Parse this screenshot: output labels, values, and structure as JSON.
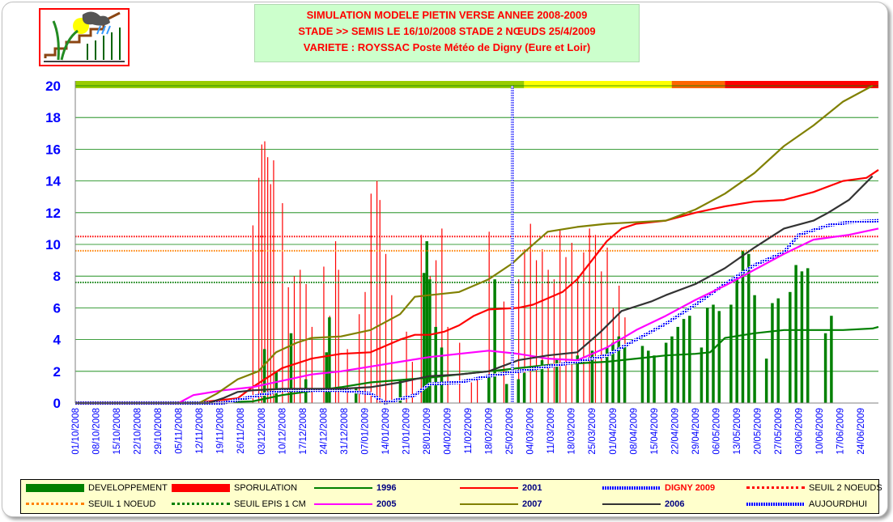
{
  "title": {
    "line1": "SIMULATION MODELE PIETIN VERSE ANNEE 2008-2009",
    "line2": "STADE  >> SEMIS LE  16/10/2008   STADE 2 NŒUDS 25/4/2009",
    "line3": "VARIETE : ROYSSAC  Poste Météo de Digny (Eure et Loir)"
  },
  "logo": {
    "icon": "farm-weather-logo-icon"
  },
  "colors": {
    "developpement": "#008000",
    "sporulation": "#ff0000",
    "s1996": "#008000",
    "s2001": "#ff0000",
    "digny2009": "#0000ff",
    "seuil2noeuds": "#ff0000",
    "seuil1noeud": "#ff8000",
    "seuilepis": "#008000",
    "s2005": "#ff00ff",
    "s2007": "#808000",
    "s2006": "#333333",
    "aujourdhui": "#0000ff"
  },
  "chart_data": {
    "type": "line",
    "ylim": [
      0,
      20
    ],
    "yticks": [
      0,
      2,
      4,
      6,
      8,
      10,
      12,
      14,
      16,
      18,
      20
    ],
    "x_labels": [
      "01/10/2008",
      "08/10/2008",
      "15/10/2008",
      "22/10/2008",
      "29/10/2008",
      "05/11/2008",
      "12/11/2008",
      "19/11/2008",
      "26/11/2008",
      "03/12/2008",
      "10/12/2008",
      "17/12/2008",
      "24/12/2008",
      "31/12/2008",
      "07/01/2009",
      "14/01/2009",
      "21/01/2009",
      "28/01/2009",
      "04/02/2009",
      "11/02/2009",
      "18/02/2009",
      "25/02/2009",
      "04/03/2009",
      "11/03/2009",
      "18/03/2009",
      "25/03/2009",
      "01/04/2009",
      "08/04/2009",
      "15/04/2009",
      "22/04/2009",
      "29/04/2009",
      "06/05/2009",
      "13/05/2009",
      "20/05/2009",
      "27/05/2009",
      "03/06/2009",
      "10/06/2009",
      "17/06/2009",
      "24/06/2009"
    ],
    "risk_bar": [
      {
        "from": 0,
        "to": 152,
        "color": "#99cc00"
      },
      {
        "from": 152,
        "to": 202,
        "color": "#ffff00"
      },
      {
        "from": 202,
        "to": 220,
        "color": "#ff6600"
      },
      {
        "from": 220,
        "to": 272,
        "color": "#ff0000"
      }
    ],
    "thresholds": [
      {
        "name": "SEUIL 2 NOEUDS",
        "value": 10.5
      },
      {
        "name": "SEUIL 1 NOEUD",
        "value": 9.6
      },
      {
        "name": "SEUIL EPIS 1 CM",
        "value": 7.6
      }
    ],
    "aujourdhui_day": 148,
    "series": [
      {
        "name": "1996",
        "key": "s1996",
        "points": [
          [
            0,
            0
          ],
          [
            40,
            0
          ],
          [
            60,
            0.1
          ],
          [
            70,
            0.5
          ],
          [
            90,
            1.0
          ],
          [
            100,
            1.3
          ],
          [
            120,
            1.6
          ],
          [
            130,
            1.8
          ],
          [
            140,
            2.0
          ],
          [
            150,
            2.2
          ],
          [
            160,
            2.4
          ],
          [
            170,
            2.5
          ],
          [
            180,
            2.6
          ],
          [
            190,
            2.8
          ],
          [
            200,
            3.0
          ],
          [
            210,
            3.1
          ],
          [
            215,
            3.2
          ],
          [
            220,
            4.1
          ],
          [
            230,
            4.4
          ],
          [
            240,
            4.6
          ],
          [
            250,
            4.6
          ],
          [
            260,
            4.6
          ],
          [
            270,
            4.7
          ],
          [
            272,
            4.8
          ]
        ]
      },
      {
        "name": "2001",
        "key": "s2001",
        "points": [
          [
            0,
            0
          ],
          [
            40,
            0
          ],
          [
            55,
            0.3
          ],
          [
            60,
            1.0
          ],
          [
            70,
            2.2
          ],
          [
            80,
            2.8
          ],
          [
            90,
            3.1
          ],
          [
            100,
            3.2
          ],
          [
            110,
            4.0
          ],
          [
            115,
            4.3
          ],
          [
            120,
            4.3
          ],
          [
            125,
            4.5
          ],
          [
            130,
            4.9
          ],
          [
            135,
            5.5
          ],
          [
            140,
            5.9
          ],
          [
            150,
            6.0
          ],
          [
            155,
            6.2
          ],
          [
            165,
            7.0
          ],
          [
            170,
            7.8
          ],
          [
            175,
            9.0
          ],
          [
            180,
            10.2
          ],
          [
            185,
            11.0
          ],
          [
            190,
            11.3
          ],
          [
            200,
            11.5
          ],
          [
            210,
            12.0
          ],
          [
            220,
            12.4
          ],
          [
            230,
            12.7
          ],
          [
            240,
            12.8
          ],
          [
            250,
            13.3
          ],
          [
            260,
            14.0
          ],
          [
            268,
            14.2
          ],
          [
            272,
            14.7
          ]
        ]
      },
      {
        "name": "DIGNY 2009",
        "key": "digny2009",
        "points": [
          [
            0,
            0
          ],
          [
            50,
            0
          ],
          [
            60,
            0.4
          ],
          [
            70,
            0.8
          ],
          [
            90,
            0.8
          ],
          [
            95,
            0.7
          ],
          [
            100,
            0.6
          ],
          [
            105,
            0
          ],
          [
            115,
            0.5
          ],
          [
            120,
            1.2
          ],
          [
            130,
            1.3
          ],
          [
            135,
            1.5
          ],
          [
            140,
            1.7
          ],
          [
            150,
            2.0
          ],
          [
            160,
            2.3
          ],
          [
            170,
            2.6
          ],
          [
            180,
            3.0
          ],
          [
            190,
            4.0
          ],
          [
            200,
            5.0
          ],
          [
            205,
            5.6
          ],
          [
            210,
            6.2
          ],
          [
            220,
            7.5
          ],
          [
            230,
            8.7
          ],
          [
            240,
            9.5
          ],
          [
            245,
            10.6
          ],
          [
            250,
            10.9
          ],
          [
            255,
            11.2
          ],
          [
            262,
            11.4
          ],
          [
            272,
            11.5
          ]
        ]
      },
      {
        "name": "2005",
        "key": "s2005",
        "points": [
          [
            0,
            0
          ],
          [
            35,
            0
          ],
          [
            40,
            0.5
          ],
          [
            50,
            0.8
          ],
          [
            60,
            1.0
          ],
          [
            70,
            1.4
          ],
          [
            80,
            1.8
          ],
          [
            90,
            2.0
          ],
          [
            100,
            2.3
          ],
          [
            110,
            2.6
          ],
          [
            120,
            2.9
          ],
          [
            130,
            3.1
          ],
          [
            140,
            3.3
          ],
          [
            150,
            3.1
          ],
          [
            160,
            2.8
          ],
          [
            170,
            2.7
          ],
          [
            180,
            3.5
          ],
          [
            190,
            4.6
          ],
          [
            200,
            5.5
          ],
          [
            210,
            6.5
          ],
          [
            220,
            7.4
          ],
          [
            230,
            8.4
          ],
          [
            240,
            9.4
          ],
          [
            250,
            10.3
          ],
          [
            262,
            10.6
          ],
          [
            272,
            11.0
          ]
        ]
      },
      {
        "name": "2007",
        "key": "s2007",
        "points": [
          [
            0,
            0
          ],
          [
            42,
            0
          ],
          [
            48,
            0.6
          ],
          [
            55,
            1.5
          ],
          [
            62,
            2.0
          ],
          [
            68,
            3.2
          ],
          [
            75,
            3.8
          ],
          [
            80,
            4.1
          ],
          [
            90,
            4.2
          ],
          [
            100,
            4.6
          ],
          [
            110,
            5.6
          ],
          [
            115,
            6.7
          ],
          [
            120,
            6.8
          ],
          [
            130,
            7.0
          ],
          [
            140,
            7.8
          ],
          [
            148,
            8.8
          ],
          [
            152,
            9.5
          ],
          [
            160,
            10.8
          ],
          [
            170,
            11.1
          ],
          [
            180,
            11.3
          ],
          [
            200,
            11.5
          ],
          [
            210,
            12.2
          ],
          [
            220,
            13.2
          ],
          [
            230,
            14.5
          ],
          [
            240,
            16.2
          ],
          [
            250,
            17.5
          ],
          [
            260,
            19.0
          ],
          [
            270,
            20
          ]
        ]
      },
      {
        "name": "2006",
        "key": "s2006",
        "points": [
          [
            0,
            0
          ],
          [
            45,
            0
          ],
          [
            50,
            0.3
          ],
          [
            55,
            0.7
          ],
          [
            60,
            0.8
          ],
          [
            70,
            0.9
          ],
          [
            90,
            0.9
          ],
          [
            100,
            1.0
          ],
          [
            110,
            1.3
          ],
          [
            120,
            1.7
          ],
          [
            130,
            1.8
          ],
          [
            140,
            2.0
          ],
          [
            150,
            2.7
          ],
          [
            160,
            3.0
          ],
          [
            170,
            3.2
          ],
          [
            178,
            4.5
          ],
          [
            185,
            5.8
          ],
          [
            195,
            6.4
          ],
          [
            200,
            6.8
          ],
          [
            210,
            7.5
          ],
          [
            220,
            8.5
          ],
          [
            230,
            9.8
          ],
          [
            240,
            11.0
          ],
          [
            250,
            11.5
          ],
          [
            255,
            12.0
          ],
          [
            262,
            12.8
          ],
          [
            270,
            14.3
          ]
        ]
      }
    ],
    "developpement_bars": [
      [
        64,
        3.4
      ],
      [
        68,
        2.0
      ],
      [
        73,
        4.4
      ],
      [
        78,
        1.5
      ],
      [
        85,
        3.2
      ],
      [
        86,
        5.4
      ],
      [
        95,
        1.0
      ],
      [
        110,
        1.5
      ],
      [
        118,
        8.2
      ],
      [
        119,
        10.2
      ],
      [
        120,
        7.8
      ],
      [
        122,
        4.8
      ],
      [
        124,
        3.5
      ],
      [
        140,
        1.8
      ],
      [
        142,
        7.8
      ],
      [
        146,
        1.2
      ],
      [
        150,
        1.5
      ],
      [
        152,
        1.9
      ],
      [
        158,
        2.7
      ],
      [
        163,
        2.8
      ],
      [
        170,
        3.0
      ],
      [
        175,
        3.3
      ],
      [
        180,
        3.5
      ],
      [
        182,
        3.8
      ],
      [
        184,
        4.2
      ],
      [
        186,
        3.6
      ],
      [
        192,
        3.6
      ],
      [
        194,
        3.3
      ],
      [
        196,
        3.0
      ],
      [
        200,
        3.8
      ],
      [
        202,
        4.2
      ],
      [
        204,
        4.8
      ],
      [
        206,
        5.3
      ],
      [
        208,
        5.5
      ],
      [
        212,
        3.5
      ],
      [
        214,
        6.0
      ],
      [
        216,
        6.2
      ],
      [
        218,
        5.8
      ],
      [
        222,
        6.2
      ],
      [
        224,
        8.0
      ],
      [
        226,
        9.6
      ],
      [
        228,
        9.4
      ],
      [
        230,
        6.8
      ],
      [
        234,
        2.8
      ],
      [
        236,
        6.3
      ],
      [
        238,
        6.6
      ],
      [
        242,
        7.0
      ],
      [
        244,
        8.7
      ],
      [
        246,
        8.3
      ],
      [
        248,
        8.5
      ],
      [
        254,
        4.4
      ],
      [
        256,
        5.5
      ]
    ],
    "sporulation_bars": [
      [
        60,
        11.2
      ],
      [
        62,
        14.2
      ],
      [
        63,
        16.3
      ],
      [
        64,
        16.5
      ],
      [
        65,
        15.5
      ],
      [
        66,
        13.8
      ],
      [
        67,
        15.3
      ],
      [
        70,
        12.6
      ],
      [
        72,
        7.3
      ],
      [
        74,
        8.0
      ],
      [
        76,
        8.4
      ],
      [
        78,
        7.5
      ],
      [
        80,
        4.8
      ],
      [
        84,
        8.6
      ],
      [
        86,
        5.5
      ],
      [
        88,
        10.2
      ],
      [
        89,
        8.4
      ],
      [
        92,
        3.4
      ],
      [
        96,
        5.6
      ],
      [
        98,
        7.0
      ],
      [
        100,
        13.2
      ],
      [
        102,
        14.0
      ],
      [
        103,
        12.8
      ],
      [
        105,
        9.4
      ],
      [
        107,
        6.8
      ],
      [
        112,
        4.5
      ],
      [
        114,
        2.6
      ],
      [
        117,
        10.6
      ],
      [
        120,
        8.0
      ],
      [
        122,
        9.0
      ],
      [
        124,
        11.0
      ],
      [
        126,
        4.8
      ],
      [
        130,
        3.8
      ],
      [
        134,
        1.3
      ],
      [
        136,
        1.5
      ],
      [
        140,
        10.8
      ],
      [
        142,
        7.0
      ],
      [
        145,
        6.4
      ],
      [
        148,
        12.0
      ],
      [
        150,
        7.8
      ],
      [
        152,
        9.7
      ],
      [
        154,
        11.3
      ],
      [
        156,
        9.0
      ],
      [
        158,
        9.7
      ],
      [
        160,
        8.4
      ],
      [
        162,
        7.8
      ],
      [
        164,
        10.9
      ],
      [
        166,
        9.2
      ],
      [
        168,
        10.1
      ],
      [
        170,
        8.0
      ],
      [
        172,
        9.5
      ],
      [
        174,
        11.0
      ],
      [
        176,
        10.6
      ],
      [
        178,
        8.3
      ],
      [
        180,
        9.8
      ],
      [
        182,
        6.0
      ],
      [
        184,
        7.4
      ],
      [
        186,
        5.4
      ]
    ]
  },
  "legend": [
    {
      "label": "DEVELOPPEMENT",
      "key": "developpement",
      "style": "bar"
    },
    {
      "label": "SPORULATION",
      "key": "sporulation",
      "style": "bar"
    },
    {
      "label": "1996",
      "key": "s1996",
      "style": "line"
    },
    {
      "label": "2001",
      "key": "s2001",
      "style": "line"
    },
    {
      "label": "DIGNY 2009",
      "key": "digny2009",
      "style": "hatch"
    },
    {
      "label": "SEUIL 2 NOEUDS",
      "key": "seuil2noeuds",
      "style": "dotted"
    },
    {
      "label": "SEUIL 1 NOEUD",
      "key": "seuil1noeud",
      "style": "dotted"
    },
    {
      "label": "SEUIL EPIS 1 CM",
      "key": "seuilepis",
      "style": "dotted"
    },
    {
      "label": "2005",
      "key": "s2005",
      "style": "line"
    },
    {
      "label": "2007",
      "key": "s2007",
      "style": "line"
    },
    {
      "label": "2006",
      "key": "s2006",
      "style": "line"
    },
    {
      "label": "AUJOURDHUI",
      "key": "aujourdhui",
      "style": "hatch"
    }
  ]
}
